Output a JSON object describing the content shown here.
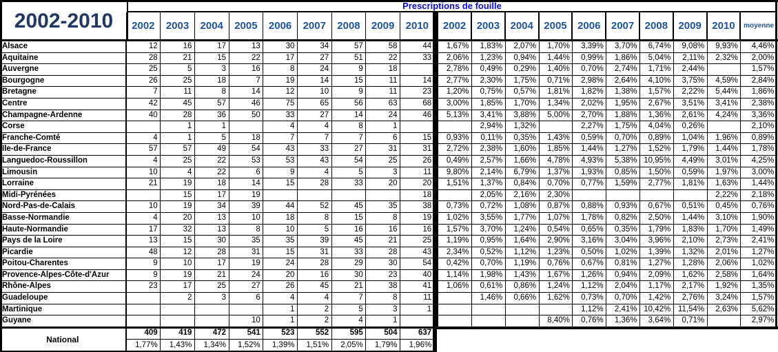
{
  "sheet": {
    "title": "2002-2010",
    "header": "Prescriptions de fouille",
    "years": [
      "2002",
      "2003",
      "2004",
      "2005",
      "2006",
      "2007",
      "2008",
      "2009",
      "2010"
    ],
    "moyenne_label": "moyenne",
    "national_label": "National"
  },
  "colors": {
    "title_navy": "#1f3864",
    "year_blue": "#1f5596",
    "bar_blue": "#0a0ae0",
    "border": "#000000"
  },
  "rows": [
    {
      "name": "Alsace",
      "counts": [
        "12",
        "16",
        "17",
        "13",
        "30",
        "34",
        "57",
        "58",
        "44"
      ],
      "pcts": [
        "1,67%",
        "1,83%",
        "2,07%",
        "1,70%",
        "3,39%",
        "3,70%",
        "6,74%",
        "9,08%",
        "9,93%"
      ],
      "moyenne": "4,46%"
    },
    {
      "name": "Aquitaine",
      "counts": [
        "28",
        "21",
        "15",
        "22",
        "17",
        "27",
        "51",
        "22",
        "33"
      ],
      "pcts": [
        "2,06%",
        "1,23%",
        "0,94%",
        "1,44%",
        "0,99%",
        "1,86%",
        "5,04%",
        "2,11%",
        "2,32%"
      ],
      "moyenne": "2,00%"
    },
    {
      "name": "Auvergne",
      "counts": [
        "25",
        "5",
        "3",
        "16",
        "8",
        "24",
        "9",
        "18",
        ""
      ],
      "pcts": [
        "2,78%",
        "0,49%",
        "0,29%",
        "1,40%",
        "0,70%",
        "2,74%",
        "1,71%",
        "2,44%",
        ""
      ],
      "moyenne": "1,57%"
    },
    {
      "name": "Bourgogne",
      "counts": [
        "26",
        "25",
        "18",
        "7",
        "19",
        "14",
        "15",
        "11",
        "14"
      ],
      "pcts": [
        "2,77%",
        "2,30%",
        "1,75%",
        "0,71%",
        "2,98%",
        "2,64%",
        "4,10%",
        "3,75%",
        "4,59%"
      ],
      "moyenne": "2,84%"
    },
    {
      "name": "Bretagne",
      "counts": [
        "7",
        "11",
        "8",
        "14",
        "12",
        "10",
        "9",
        "11",
        "23"
      ],
      "pcts": [
        "1,20%",
        "0,75%",
        "0,57%",
        "1,81%",
        "1,82%",
        "1,38%",
        "1,57%",
        "2,22%",
        "5,44%"
      ],
      "moyenne": "1,86%"
    },
    {
      "name": "Centre",
      "counts": [
        "42",
        "45",
        "57",
        "46",
        "75",
        "65",
        "56",
        "63",
        "68"
      ],
      "pcts": [
        "3,00%",
        "1,85%",
        "1,70%",
        "1,34%",
        "2,02%",
        "1,95%",
        "2,67%",
        "3,51%",
        "3,41%"
      ],
      "moyenne": "2,38%"
    },
    {
      "name": "Champagne-Ardenne",
      "counts": [
        "40",
        "28",
        "36",
        "50",
        "33",
        "27",
        "14",
        "24",
        "46"
      ],
      "pcts": [
        "5,13%",
        "3,41%",
        "3,88%",
        "5,00%",
        "2,70%",
        "1,88%",
        "1,36%",
        "2,61%",
        "4,24%"
      ],
      "moyenne": "3,36%"
    },
    {
      "name": "Corse",
      "counts": [
        "",
        "1",
        "1",
        "",
        "4",
        "4",
        "8",
        "1",
        ""
      ],
      "pcts": [
        "",
        "2,94%",
        "1,32%",
        "",
        "2,27%",
        "1,75%",
        "4,04%",
        "0,26%",
        ""
      ],
      "moyenne": "2,10%"
    },
    {
      "name": "Franche-Comté",
      "counts": [
        "4",
        "1",
        "5",
        "18",
        "7",
        "7",
        "7",
        "6",
        "15"
      ],
      "pcts": [
        "0,93%",
        "0,11%",
        "0,35%",
        "1,43%",
        "0,59%",
        "0,70%",
        "0,89%",
        "1,04%",
        "1,96%"
      ],
      "moyenne": "0,89%"
    },
    {
      "name": "Ile-de-France",
      "counts": [
        "57",
        "57",
        "49",
        "54",
        "43",
        "33",
        "27",
        "31",
        "31"
      ],
      "pcts": [
        "2,72%",
        "2,38%",
        "1,60%",
        "1,85%",
        "1,44%",
        "1,27%",
        "1,52%",
        "1,79%",
        "1,44%"
      ],
      "moyenne": "1,78%"
    },
    {
      "name": "Languedoc-Roussillon",
      "counts": [
        "4",
        "25",
        "22",
        "53",
        "53",
        "43",
        "54",
        "25",
        "26"
      ],
      "pcts": [
        "0,49%",
        "2,57%",
        "1,66%",
        "4,78%",
        "4,93%",
        "5,38%",
        "10,95%",
        "4,49%",
        "3,01%"
      ],
      "moyenne": "4,25%"
    },
    {
      "name": "Limousin",
      "counts": [
        "10",
        "4",
        "22",
        "6",
        "9",
        "4",
        "5",
        "3",
        "11"
      ],
      "pcts": [
        "9,80%",
        "2,14%",
        "6,79%",
        "1,37%",
        "1,93%",
        "0,85%",
        "1,50%",
        "0,59%",
        "1,97%"
      ],
      "moyenne": "3,00%"
    },
    {
      "name": "Lorraine",
      "counts": [
        "21",
        "19",
        "18",
        "14",
        "15",
        "28",
        "33",
        "20",
        "20"
      ],
      "pcts": [
        "1,51%",
        "1,37%",
        "0,84%",
        "0,70%",
        "0,77%",
        "1,59%",
        "2,77%",
        "1,81%",
        "1,63%"
      ],
      "moyenne": "1,44%"
    },
    {
      "name": "Midi-Pyrénées",
      "counts": [
        "",
        "15",
        "17",
        "19",
        "",
        "",
        "",
        "",
        "18"
      ],
      "pcts": [
        "",
        "2,05%",
        "2,16%",
        "2,30%",
        "",
        "",
        "",
        "",
        "2,22%"
      ],
      "moyenne": "2,18%"
    },
    {
      "name": "Nord-Pas-de-Calais",
      "counts": [
        "10",
        "19",
        "34",
        "39",
        "44",
        "52",
        "45",
        "35",
        "38"
      ],
      "pcts": [
        "0,73%",
        "0,72%",
        "1,08%",
        "0,87%",
        "0,88%",
        "0,93%",
        "0,67%",
        "0,51%",
        "0,45%"
      ],
      "moyenne": "0,76%"
    },
    {
      "name": "Basse-Normandie",
      "counts": [
        "4",
        "20",
        "13",
        "10",
        "18",
        "8",
        "15",
        "8",
        "19"
      ],
      "pcts": [
        "1,02%",
        "3,55%",
        "1,77%",
        "1,07%",
        "1,78%",
        "0,82%",
        "2,50%",
        "1,44%",
        "3,10%"
      ],
      "moyenne": "1,90%"
    },
    {
      "name": "Haute-Normandie",
      "counts": [
        "17",
        "32",
        "13",
        "8",
        "10",
        "5",
        "16",
        "16",
        "16"
      ],
      "pcts": [
        "1,57%",
        "3,70%",
        "1,24%",
        "0,54%",
        "0,65%",
        "0,35%",
        "1,79%",
        "1,83%",
        "1,70%"
      ],
      "moyenne": "1,49%"
    },
    {
      "name": "Pays de la Loire",
      "counts": [
        "13",
        "15",
        "30",
        "35",
        "35",
        "39",
        "45",
        "21",
        "25"
      ],
      "pcts": [
        "1,19%",
        "0,95%",
        "1,64%",
        "2,90%",
        "3,16%",
        "3,04%",
        "3,96%",
        "2,10%",
        "2,73%"
      ],
      "moyenne": "2,41%"
    },
    {
      "name": "Picardie",
      "counts": [
        "48",
        "12",
        "28",
        "31",
        "15",
        "31",
        "33",
        "28",
        "43"
      ],
      "pcts": [
        "2,34%",
        "0,52%",
        "1,12%",
        "1,23%",
        "0,50%",
        "1,02%",
        "1,39%",
        "1,32%",
        "2,01%"
      ],
      "moyenne": "1,27%"
    },
    {
      "name": "Poitou-Charentes",
      "counts": [
        "9",
        "10",
        "17",
        "19",
        "24",
        "28",
        "29",
        "30",
        "54"
      ],
      "pcts": [
        "0,42%",
        "0,70%",
        "1,19%",
        "0,76%",
        "0,67%",
        "0,81%",
        "1,27%",
        "1,28%",
        "2,06%"
      ],
      "moyenne": "1,02%"
    },
    {
      "name": "Provence-Alpes-Côte-d'Azur",
      "counts": [
        "9",
        "19",
        "21",
        "24",
        "20",
        "16",
        "30",
        "23",
        "40"
      ],
      "pcts": [
        "1,14%",
        "1,98%",
        "1,43%",
        "1,67%",
        "1,26%",
        "0,94%",
        "2,09%",
        "1,62%",
        "2,58%"
      ],
      "moyenne": "1,64%"
    },
    {
      "name": "Rhône-Alpes",
      "counts": [
        "23",
        "17",
        "25",
        "27",
        "26",
        "45",
        "21",
        "38",
        "41"
      ],
      "pcts": [
        "1,06%",
        "0,61%",
        "0,86%",
        "1,24%",
        "1,12%",
        "2,04%",
        "1,17%",
        "2,17%",
        "1,92%"
      ],
      "moyenne": "1,35%"
    },
    {
      "name": "Guadeloupe",
      "counts": [
        "",
        "2",
        "3",
        "6",
        "4",
        "4",
        "7",
        "8",
        "11"
      ],
      "pcts": [
        "",
        "1,46%",
        "0,66%",
        "1,62%",
        "0,73%",
        "0,70%",
        "1,42%",
        "2,76%",
        "3,24%"
      ],
      "moyenne": "1,57%"
    },
    {
      "name": "Martinique",
      "counts": [
        "",
        "",
        "",
        "",
        "1",
        "2",
        "5",
        "3",
        "1"
      ],
      "pcts": [
        "",
        "",
        "",
        "",
        "1,12%",
        "2,41%",
        "10,42%",
        "11,54%",
        "2,63%"
      ],
      "moyenne": "5,62%"
    },
    {
      "name": "Guyane",
      "counts": [
        "",
        "",
        "",
        "10",
        "1",
        "2",
        "4",
        "1",
        ""
      ],
      "pcts": [
        "",
        "",
        "",
        "8,40%",
        "0,76%",
        "1,36%",
        "3,64%",
        "0,71%",
        ""
      ],
      "moyenne": "2,97%"
    }
  ],
  "national": {
    "counts": [
      "409",
      "419",
      "472",
      "541",
      "523",
      "552",
      "595",
      "504",
      "637"
    ],
    "pcts": [
      "1,77%",
      "1,43%",
      "1,34%",
      "1,52%",
      "1,39%",
      "1,51%",
      "2,05%",
      "1,79%",
      "1,96%"
    ]
  }
}
